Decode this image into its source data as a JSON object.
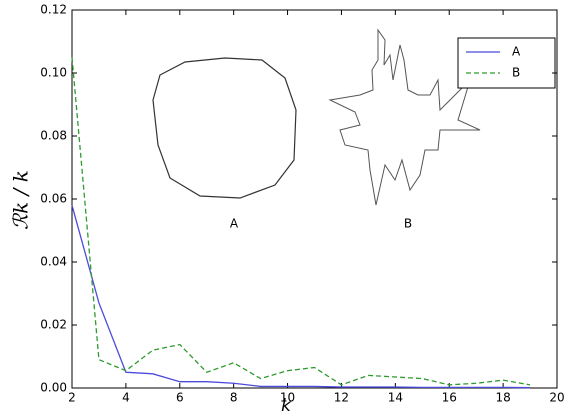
{
  "chart_data": {
    "type": "line",
    "xlabel": "k",
    "ylabel": "ℛk / k",
    "x": [
      2,
      3,
      4,
      5,
      6,
      7,
      8,
      9,
      10,
      11,
      12,
      13,
      14,
      15,
      16,
      17,
      18,
      19
    ],
    "series": [
      {
        "name": "A",
        "color": "#4b4bdc",
        "dash": false,
        "values": [
          0.058,
          0.027,
          0.005,
          0.0045,
          0.002,
          0.002,
          0.0015,
          0.0005,
          0.0005,
          0.0005,
          0.0003,
          0.0003,
          0.0003,
          0.0002,
          0.0002,
          0.0002,
          0.0002,
          0.0001
        ]
      },
      {
        "name": "B",
        "color": "#2e9a2e",
        "dash": true,
        "values": [
          0.105,
          0.009,
          0.0055,
          0.012,
          0.0138,
          0.005,
          0.008,
          0.003,
          0.0055,
          0.0065,
          0.001,
          0.004,
          0.0035,
          0.003,
          0.001,
          0.0015,
          0.0025,
          0.001
        ]
      }
    ],
    "xlim": [
      2,
      20
    ],
    "xticks": [
      2,
      4,
      6,
      8,
      10,
      12,
      14,
      16,
      18,
      20
    ],
    "ylim": [
      0,
      0.12
    ],
    "yticks": [
      {
        "value": 0,
        "label": "0.00"
      },
      {
        "value": 0.02,
        "label": "0.02"
      },
      {
        "value": 0.04,
        "label": "0.04"
      },
      {
        "value": 0.06,
        "label": "0.06"
      },
      {
        "value": 0.08,
        "label": "0.08"
      },
      {
        "value": 0.1,
        "label": "0.10"
      },
      {
        "value": 0.12,
        "label": "0.12"
      }
    ],
    "legend": "upper right",
    "annotations": [
      "A",
      "B"
    ]
  }
}
